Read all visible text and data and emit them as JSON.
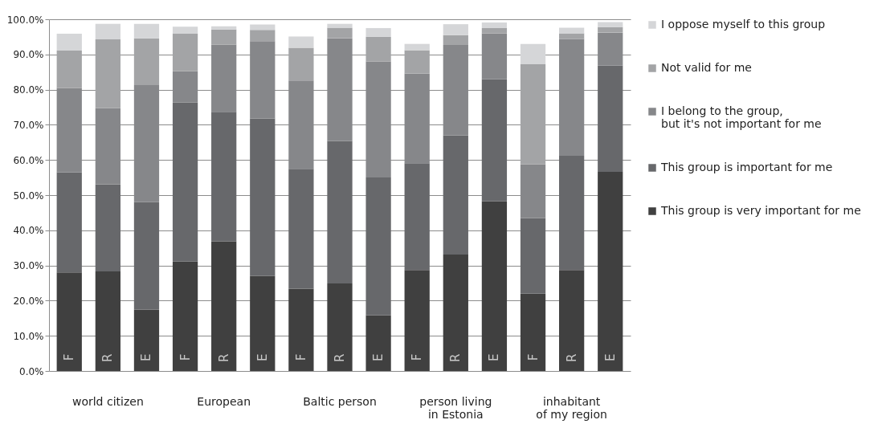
{
  "chart_data": {
    "type": "bar",
    "stacked": true,
    "grid": "y",
    "legend": "right",
    "categories": [
      "F",
      "R",
      "E",
      "F",
      "R",
      "E",
      "F",
      "R",
      "E",
      "F",
      "R",
      "E",
      "F",
      "R",
      "E"
    ],
    "ylim": [
      0,
      100
    ],
    "yticks": [
      {
        "value": 0,
        "label": "0.0%"
      },
      {
        "value": 10,
        "label": "10.0%"
      },
      {
        "value": 20,
        "label": "20.0%"
      },
      {
        "value": 30,
        "label": "30.0%"
      },
      {
        "value": 40,
        "label": "40.0%"
      },
      {
        "value": 50,
        "label": "50.0%"
      },
      {
        "value": 60,
        "label": "60.0%"
      },
      {
        "value": 70,
        "label": "70.0%"
      },
      {
        "value": 80,
        "label": "80.0%"
      },
      {
        "value": 90,
        "label": "90.0%"
      },
      {
        "value": 100,
        "label": "100.0%"
      }
    ],
    "series": [
      {
        "name": "This group is very important for me",
        "color": "#404040",
        "values": [
          28.0,
          28.3,
          17.4,
          31.1,
          36.9,
          27.0,
          23.4,
          24.9,
          15.8,
          28.7,
          33.1,
          48.3,
          22.0,
          28.7,
          56.6
        ]
      },
      {
        "name": "This group is important for me",
        "color": "#67686b",
        "values": [
          28.5,
          24.8,
          30.6,
          45.2,
          36.8,
          44.8,
          34.1,
          40.5,
          39.2,
          30.4,
          33.9,
          34.7,
          21.5,
          32.5,
          30.2
        ]
      },
      {
        "name": "I belong to the group,\nbut it's not important for me",
        "color": "#86878a",
        "values": [
          24.0,
          21.6,
          33.3,
          8.9,
          19.1,
          22.0,
          25.1,
          29.2,
          33.0,
          25.5,
          25.7,
          13.0,
          15.3,
          33.2,
          9.4
        ]
      },
      {
        "name": "Not valid for me",
        "color": "#a3a4a6",
        "values": [
          10.6,
          19.6,
          13.3,
          10.7,
          4.3,
          3.2,
          9.3,
          3.0,
          7.0,
          6.6,
          2.8,
          1.5,
          28.4,
          1.6,
          1.6
        ]
      },
      {
        "name": "I oppose myself to this group",
        "color": "#d5d6d8",
        "values": [
          4.8,
          4.4,
          4.1,
          2.0,
          0.9,
          1.5,
          3.2,
          1.1,
          2.5,
          1.8,
          3.1,
          1.6,
          5.8,
          1.6,
          1.4
        ]
      }
    ],
    "annotations": [
      "world citizen",
      "European",
      "Baltic person",
      "person living\nin Estonia",
      "inhabitant\nof my region"
    ]
  }
}
